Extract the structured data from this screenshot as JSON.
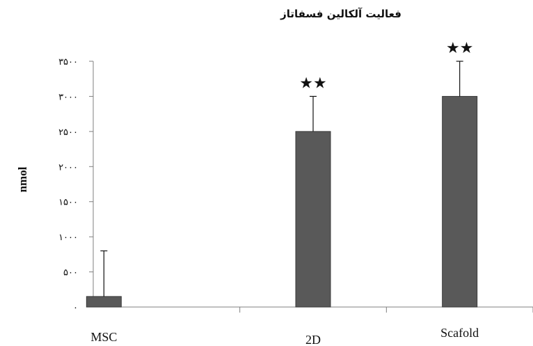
{
  "chart_data": {
    "type": "bar",
    "title": "فعالیت آلکالین فسفاتاز",
    "xlabel": "",
    "ylabel": "nmol",
    "categories": [
      "MSC",
      "2D",
      "Scafold"
    ],
    "values": [
      150,
      2500,
      3000
    ],
    "error_plus": [
      650,
      500,
      500
    ],
    "annotations": [
      "",
      "★★",
      "★★"
    ],
    "ylim": [
      0,
      3500
    ],
    "yticks": [
      0,
      500,
      1000,
      1500,
      2000,
      2500,
      3000,
      3500
    ],
    "ytick_labels": [
      "۰",
      "۵۰۰",
      "۱۰۰۰",
      "۱۵۰۰",
      "۲۰۰۰",
      "۲۵۰۰",
      "۳۰۰۰",
      "۳۵۰۰"
    ],
    "bar_color": "#595959",
    "grid": false,
    "legend": "none"
  }
}
